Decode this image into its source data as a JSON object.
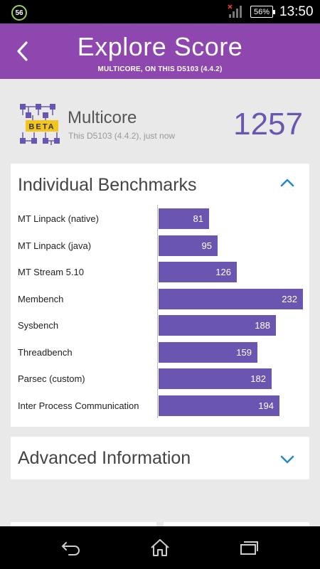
{
  "status_bar": {
    "notification_badge": "56",
    "battery": "56%",
    "time": "13:50",
    "icons": [
      "notification-badge-icon",
      "no-signal-icon",
      "battery-icon"
    ]
  },
  "header": {
    "title": "Explore Score",
    "subtitle": "MULTICORE, ON THIS D5103 (4.4.2)",
    "back_icon": "chevron-left-icon",
    "color": "#8d47ae"
  },
  "score": {
    "logo_text": "BETA",
    "title": "Multicore",
    "subtitle": "This D5103 (4.4.2), just now",
    "value": "1257",
    "accent": "#6a55b0"
  },
  "benchmarks": {
    "title": "Individual Benchmarks",
    "toggle_icon": "chevron-up-icon",
    "bar_color": "#6a55b0",
    "max_value": 232,
    "items": [
      {
        "label": "MT Linpack (native)",
        "value": 81
      },
      {
        "label": "MT Linpack (java)",
        "value": 95
      },
      {
        "label": "MT Stream 5.10",
        "value": 126
      },
      {
        "label": "Membench",
        "value": 232
      },
      {
        "label": "Sysbench",
        "value": 188
      },
      {
        "label": "Threadbench",
        "value": 159
      },
      {
        "label": "Parsec (custom)",
        "value": 182
      },
      {
        "label": "Inter Process Communication",
        "value": 194
      }
    ]
  },
  "advanced": {
    "title": "Advanced Information",
    "toggle_icon": "chevron-down-icon"
  },
  "nav_bar": {
    "icons": [
      "back-icon",
      "home-icon",
      "recents-icon"
    ]
  }
}
